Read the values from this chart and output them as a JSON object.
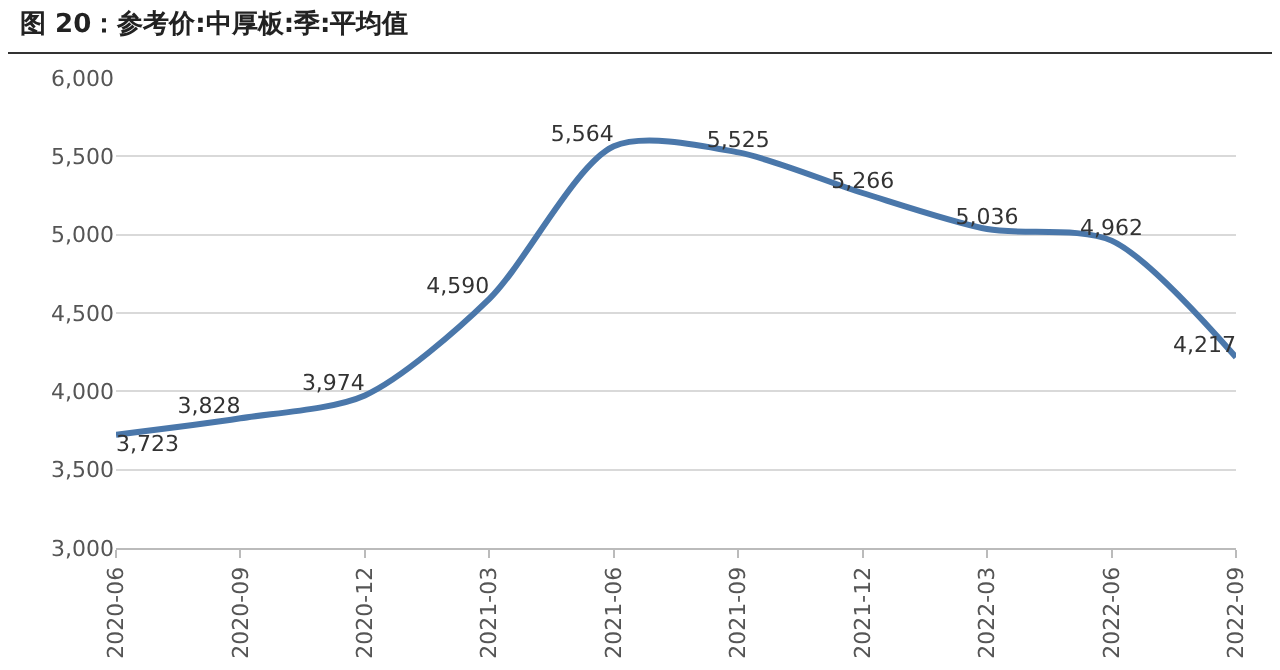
{
  "chart_data": {
    "type": "line",
    "title": "图 20：参考价:中厚板:季:平均值",
    "categories": [
      "2020-06",
      "2020-09",
      "2020-12",
      "2021-03",
      "2021-06",
      "2021-09",
      "2021-12",
      "2022-03",
      "2022-06",
      "2022-09"
    ],
    "series": [
      {
        "color": "#4a77aa",
        "values": [
          3723,
          3828,
          3974,
          4590,
          5564,
          5525,
          5266,
          5036,
          4962,
          4217
        ],
        "value_labels": [
          "3,723",
          "3,828",
          "3,974",
          "4,590",
          "5,564",
          "5,525",
          "5,266",
          "5,036",
          "4,962",
          "4,217"
        ]
      }
    ],
    "ylim": [
      3000,
      6000
    ],
    "yticks": [
      {
        "value": 3000,
        "label": "3,000"
      },
      {
        "value": 3500,
        "label": "3,500"
      },
      {
        "value": 4000,
        "label": "4,000"
      },
      {
        "value": 4500,
        "label": "4,500"
      },
      {
        "value": 5000,
        "label": "5,000"
      },
      {
        "value": 5500,
        "label": "5,500"
      },
      {
        "value": 6000,
        "label": "6,000"
      }
    ],
    "grid": "y",
    "marker": "none",
    "line_style": "solid"
  }
}
